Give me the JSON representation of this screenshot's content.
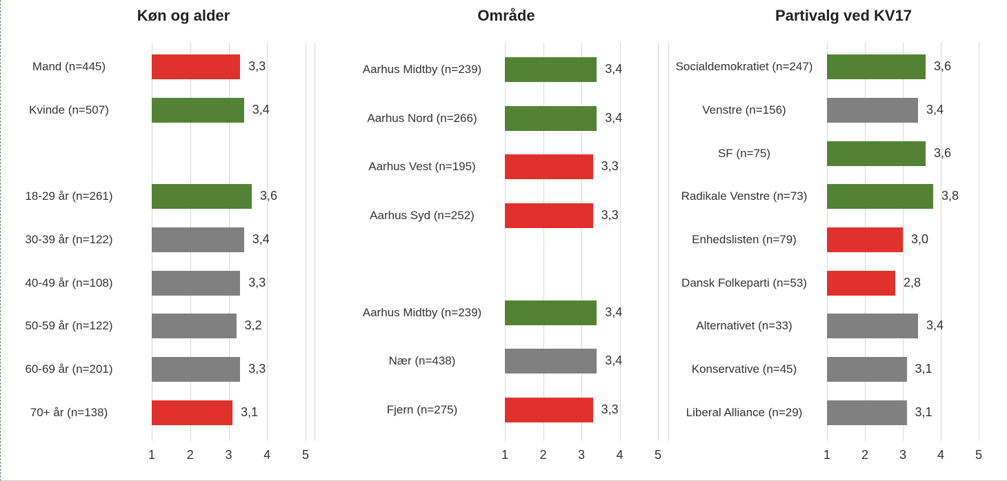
{
  "chart_data": [
    {
      "type": "barh",
      "title": "Køn og alder",
      "categories": [
        "Mand (n=445)",
        "Kvinde (n=507)",
        null,
        "18-29 år (n=261)",
        "30-39 år (n=122)",
        "40-49 år (n=108)",
        "50-59 år (n=122)",
        "60-69 år (n=201)",
        "70+ år (n=138)"
      ],
      "values": [
        3.3,
        3.4,
        null,
        3.6,
        3.4,
        3.3,
        3.2,
        3.3,
        3.1
      ],
      "value_labels": [
        "3,3",
        "3,4",
        null,
        "3,6",
        "3,4",
        "3,3",
        "3,2",
        "3,3",
        "3,1"
      ],
      "colors": [
        "#e0312c",
        "#548235",
        null,
        "#548235",
        "#808080",
        "#808080",
        "#808080",
        "#808080",
        "#e0312c"
      ],
      "xlim": [
        1,
        5
      ],
      "xticks": [
        1,
        2,
        3,
        4,
        5
      ],
      "grid": true
    },
    {
      "type": "barh",
      "title": "Område",
      "categories": [
        "Aarhus Midtby (n=239)",
        "Aarhus Nord (n=266)",
        "Aarhus Vest (n=195)",
        "Aarhus Syd (n=252)",
        null,
        "Aarhus Midtby (n=239)",
        "Nær (n=438)",
        "Fjern (n=275)"
      ],
      "values": [
        3.4,
        3.4,
        3.3,
        3.3,
        null,
        3.4,
        3.4,
        3.3
      ],
      "value_labels": [
        "3,4",
        "3,4",
        "3,3",
        "3,3",
        null,
        "3,4",
        "3,4",
        "3,3"
      ],
      "colors": [
        "#548235",
        "#548235",
        "#e0312c",
        "#e0312c",
        null,
        "#548235",
        "#808080",
        "#e0312c"
      ],
      "xlim": [
        1,
        5
      ],
      "xticks": [
        1,
        2,
        3,
        4,
        5
      ],
      "grid": true
    },
    {
      "type": "barh",
      "title": "Partivalg ved KV17",
      "categories": [
        "Socialdemokratiet (n=247)",
        "Venstre (n=156)",
        "SF (n=75)",
        "Radikale Venstre (n=73)",
        "Enhedslisten (n=79)",
        "Dansk Folkeparti (n=53)",
        "Alternativet (n=33)",
        "Konservative (n=45)",
        "Liberal Alliance (n=29)"
      ],
      "values": [
        3.6,
        3.4,
        3.6,
        3.8,
        3.0,
        2.8,
        3.4,
        3.1,
        3.1
      ],
      "value_labels": [
        "3,6",
        "3,4",
        "3,6",
        "3,8",
        "3,0",
        "2,8",
        "3,4",
        "3,1",
        "3,1"
      ],
      "colors": [
        "#548235",
        "#808080",
        "#548235",
        "#548235",
        "#e0312c",
        "#e0312c",
        "#808080",
        "#808080",
        "#808080"
      ],
      "xlim": [
        1,
        5
      ],
      "xticks": [
        1,
        2,
        3,
        4,
        5
      ],
      "grid": true
    }
  ]
}
